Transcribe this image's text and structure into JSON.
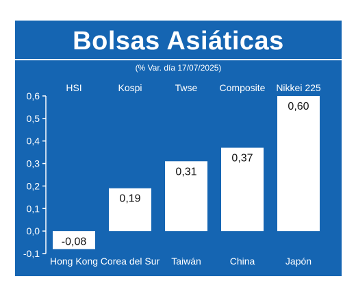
{
  "title": "Bolsas Asiáticas",
  "subtitle": "(% Var. día  17/07/2025)",
  "colors": {
    "background": "#1565b2",
    "bar": "#ffffff",
    "text": "#ffffff"
  },
  "chart_data": {
    "type": "bar",
    "indices": [
      "HSI",
      "Kospi",
      "Twse",
      "Composite",
      "Nikkei 225"
    ],
    "categories": [
      "Hong Kong",
      "Corea del Sur",
      "Taiwán",
      "China",
      "Japón"
    ],
    "values": [
      -0.08,
      0.19,
      0.31,
      0.37,
      0.6
    ],
    "value_labels": [
      "-0,08",
      "0,19",
      "0,31",
      "0,37",
      "0,60"
    ],
    "yticks": [
      "-0,1",
      "0,0",
      "0,1",
      "0,2",
      "0,3",
      "0,4",
      "0,5",
      "0,6"
    ],
    "ylim": [
      -0.1,
      0.6
    ],
    "grid": false
  }
}
